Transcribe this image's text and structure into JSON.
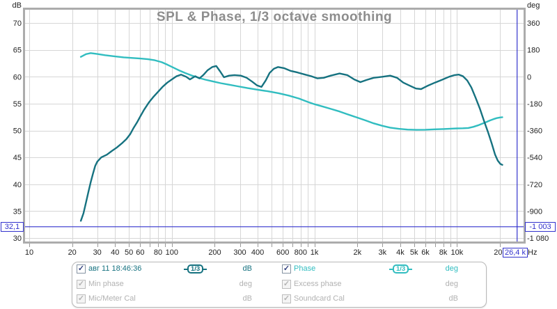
{
  "title": "SPL & Phase, 1/3 octave smoothing",
  "colors": {
    "spl": "#167280",
    "phase": "#31bdc0",
    "cursor": "#3232cd",
    "disabled": "#b2b2b2",
    "title": "#8d8d8d",
    "grid": "#d6d6d6",
    "frame": "#acacac",
    "tick_text": "#222222",
    "minor_tick": "#999999"
  },
  "axes": {
    "left_unit": "dB",
    "right_unit": "deg",
    "x_unit": "Hz",
    "left_ticks": [
      {
        "v": 70,
        "t": "70"
      },
      {
        "v": 65,
        "t": "65"
      },
      {
        "v": 60,
        "t": "60"
      },
      {
        "v": 55,
        "t": "55"
      },
      {
        "v": 50,
        "t": "50"
      },
      {
        "v": 45,
        "t": "45"
      },
      {
        "v": 40,
        "t": "40"
      },
      {
        "v": 35,
        "t": "35"
      },
      {
        "v": 30,
        "t": "30"
      }
    ],
    "right_ticks": [
      {
        "v": 360,
        "t": "360"
      },
      {
        "v": 180,
        "t": "180"
      },
      {
        "v": 0,
        "t": "0"
      },
      {
        "v": -180,
        "t": "-180"
      },
      {
        "v": -360,
        "t": "-360"
      },
      {
        "v": -540,
        "t": "-540"
      },
      {
        "v": -720,
        "t": "-720"
      },
      {
        "v": -900,
        "t": "-900"
      },
      {
        "v": -1080,
        "t": "-1 080"
      }
    ],
    "x_ticks": [
      {
        "f": 10,
        "t": "10"
      },
      {
        "f": 20,
        "t": "20"
      },
      {
        "f": 30,
        "t": "30"
      },
      {
        "f": 40,
        "t": "40"
      },
      {
        "f": 50,
        "t": "50"
      },
      {
        "f": 60,
        "t": "60"
      },
      {
        "f": 80,
        "t": "80"
      },
      {
        "f": 100,
        "t": "100"
      },
      {
        "f": 200,
        "t": "200"
      },
      {
        "f": 300,
        "t": "300"
      },
      {
        "f": 400,
        "t": "400"
      },
      {
        "f": 600,
        "t": "600"
      },
      {
        "f": 800,
        "t": "800"
      },
      {
        "f": 1000,
        "t": "1k"
      },
      {
        "f": 2000,
        "t": "2k"
      },
      {
        "f": 3000,
        "t": "3k"
      },
      {
        "f": 4000,
        "t": "4k"
      },
      {
        "f": 5000,
        "t": "5k"
      },
      {
        "f": 6000,
        "t": "6k"
      },
      {
        "f": 8000,
        "t": "8k"
      },
      {
        "f": 10000,
        "t": "10k"
      },
      {
        "f": 20000,
        "t": "20k"
      }
    ]
  },
  "cursor": {
    "freq_hz": 26400,
    "spl_db": 32.1,
    "freq_label": "26,4 k",
    "spl_label": "32,1",
    "phase_label": "-1 003"
  },
  "chart_data": {
    "type": "line",
    "title": "SPL & Phase, 1/3 octave smoothing",
    "x_axis": {
      "unit": "Hz",
      "scale": "log",
      "min": 10,
      "max": 29000,
      "grid": true
    },
    "y_left_axis": {
      "unit": "dB",
      "ticks_top": 70,
      "ticks_bottom": 30,
      "step": 5
    },
    "y_right_axis": {
      "unit": "deg",
      "ticks_top": 360,
      "ticks_bottom": -1080,
      "step": 180
    },
    "series": [
      {
        "name": "авг 11 18:46:36",
        "axis": "left",
        "unit": "dB",
        "color_key": "spl",
        "points": [
          [
            23,
            33.2
          ],
          [
            24,
            34.6
          ],
          [
            25,
            36.6
          ],
          [
            26,
            38.6
          ],
          [
            27,
            40.4
          ],
          [
            28,
            42.0
          ],
          [
            29,
            43.4
          ],
          [
            30,
            44.2
          ],
          [
            32,
            45.0
          ],
          [
            35,
            45.5
          ],
          [
            38,
            46.2
          ],
          [
            41,
            46.8
          ],
          [
            45,
            47.7
          ],
          [
            48,
            48.4
          ],
          [
            51,
            49.3
          ],
          [
            54,
            50.5
          ],
          [
            57,
            51.5
          ],
          [
            60,
            52.6
          ],
          [
            64,
            53.9
          ],
          [
            69,
            55.2
          ],
          [
            74,
            56.2
          ],
          [
            80,
            57.2
          ],
          [
            86,
            58.1
          ],
          [
            93,
            58.9
          ],
          [
            100,
            59.5
          ],
          [
            108,
            60.1
          ],
          [
            116,
            60.4
          ],
          [
            126,
            60.0
          ],
          [
            134,
            59.5
          ],
          [
            146,
            60.1
          ],
          [
            156,
            59.7
          ],
          [
            166,
            60.3
          ],
          [
            178,
            61.2
          ],
          [
            192,
            61.8
          ],
          [
            205,
            62.0
          ],
          [
            218,
            61.0
          ],
          [
            232,
            59.9
          ],
          [
            252,
            60.2
          ],
          [
            275,
            60.3
          ],
          [
            305,
            60.2
          ],
          [
            335,
            59.8
          ],
          [
            365,
            59.1
          ],
          [
            395,
            58.4
          ],
          [
            425,
            58.1
          ],
          [
            455,
            59.3
          ],
          [
            485,
            60.7
          ],
          [
            520,
            61.5
          ],
          [
            556,
            61.8
          ],
          [
            612,
            61.6
          ],
          [
            680,
            61.1
          ],
          [
            760,
            60.8
          ],
          [
            860,
            60.4
          ],
          [
            950,
            60.1
          ],
          [
            1050,
            59.7
          ],
          [
            1160,
            59.8
          ],
          [
            1300,
            60.2
          ],
          [
            1500,
            60.6
          ],
          [
            1700,
            60.3
          ],
          [
            1900,
            59.5
          ],
          [
            2100,
            59.0
          ],
          [
            2320,
            59.4
          ],
          [
            2600,
            59.8
          ],
          [
            3000,
            60.0
          ],
          [
            3400,
            60.2
          ],
          [
            3800,
            59.8
          ],
          [
            4200,
            58.9
          ],
          [
            4700,
            58.3
          ],
          [
            5150,
            57.8
          ],
          [
            5600,
            57.7
          ],
          [
            6200,
            58.3
          ],
          [
            7000,
            58.9
          ],
          [
            7800,
            59.4
          ],
          [
            8800,
            60.0
          ],
          [
            9600,
            60.3
          ],
          [
            10300,
            60.4
          ],
          [
            11000,
            60.1
          ],
          [
            11800,
            59.3
          ],
          [
            12600,
            58.0
          ],
          [
            13500,
            56.1
          ],
          [
            14500,
            54.0
          ],
          [
            15500,
            51.7
          ],
          [
            16500,
            49.7
          ],
          [
            17500,
            47.6
          ],
          [
            18500,
            45.5
          ],
          [
            19300,
            44.4
          ],
          [
            20100,
            43.8
          ],
          [
            20800,
            43.6
          ]
        ]
      },
      {
        "name": "Phase",
        "axis": "right",
        "unit": "deg",
        "color_key": "phase",
        "points": [
          [
            23,
            133
          ],
          [
            25,
            151
          ],
          [
            27,
            158
          ],
          [
            30,
            152
          ],
          [
            34,
            144
          ],
          [
            40,
            136
          ],
          [
            46,
            130
          ],
          [
            52,
            126
          ],
          [
            60,
            122
          ],
          [
            68,
            117
          ],
          [
            76,
            110
          ],
          [
            85,
            97
          ],
          [
            93,
            81
          ],
          [
            102,
            62
          ],
          [
            112,
            43
          ],
          [
            124,
            25
          ],
          [
            138,
            8
          ],
          [
            155,
            -8
          ],
          [
            172,
            -20
          ],
          [
            195,
            -32
          ],
          [
            220,
            -43
          ],
          [
            250,
            -53
          ],
          [
            290,
            -64
          ],
          [
            340,
            -76
          ],
          [
            400,
            -87
          ],
          [
            470,
            -97
          ],
          [
            560,
            -110
          ],
          [
            660,
            -126
          ],
          [
            780,
            -146
          ],
          [
            900,
            -169
          ],
          [
            1000,
            -184
          ],
          [
            1150,
            -200
          ],
          [
            1300,
            -215
          ],
          [
            1500,
            -233
          ],
          [
            1700,
            -251
          ],
          [
            2000,
            -274
          ],
          [
            2300,
            -294
          ],
          [
            2600,
            -312
          ],
          [
            3000,
            -329
          ],
          [
            3400,
            -341
          ],
          [
            3900,
            -349
          ],
          [
            4500,
            -354
          ],
          [
            5200,
            -356
          ],
          [
            6000,
            -355
          ],
          [
            7000,
            -352
          ],
          [
            8000,
            -350
          ],
          [
            9000,
            -348
          ],
          [
            10000,
            -346
          ],
          [
            11000,
            -345
          ],
          [
            12000,
            -343
          ],
          [
            13000,
            -336
          ],
          [
            14000,
            -326
          ],
          [
            15000,
            -315
          ],
          [
            16000,
            -304
          ],
          [
            17000,
            -293
          ],
          [
            18000,
            -284
          ],
          [
            19000,
            -277
          ],
          [
            20000,
            -273
          ],
          [
            20800,
            -271
          ]
        ]
      }
    ]
  },
  "legend": {
    "rows": [
      {
        "label": "авг 11 18:46:36",
        "badge": "1/3",
        "unit": "dB",
        "active": true
      },
      {
        "label": "Phase",
        "badge": "1/3",
        "unit": "deg",
        "active": true
      },
      {
        "label": "Min phase",
        "unit": "deg",
        "active": false
      },
      {
        "label": "Excess phase",
        "unit": "deg",
        "active": false
      },
      {
        "label": "Mic/Meter Cal",
        "unit": "dB",
        "active": false
      },
      {
        "label": "Soundcard Cal",
        "unit": "dB",
        "active": false
      }
    ]
  }
}
